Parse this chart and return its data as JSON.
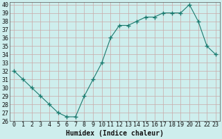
{
  "x": [
    0,
    1,
    2,
    3,
    4,
    5,
    6,
    7,
    8,
    9,
    10,
    11,
    12,
    13,
    14,
    15,
    16,
    17,
    18,
    19,
    20,
    21,
    22,
    23
  ],
  "y": [
    32,
    31,
    30,
    29,
    28,
    27,
    26.5,
    26.5,
    29,
    31,
    33,
    36,
    37.5,
    37.5,
    38,
    38.5,
    38.5,
    39,
    39,
    39,
    40,
    38,
    35,
    34
  ],
  "line_color": "#1a7a6e",
  "marker": "+",
  "marker_size": 4,
  "bg_color": "#ceeeed",
  "grid_color": "#c9a8a8",
  "xlabel": "Humidex (Indice chaleur)",
  "ylim": [
    26,
    40
  ],
  "xlim": [
    -0.5,
    23.5
  ],
  "xticks": [
    0,
    1,
    2,
    3,
    4,
    5,
    6,
    7,
    8,
    9,
    10,
    11,
    12,
    13,
    14,
    15,
    16,
    17,
    18,
    19,
    20,
    21,
    22,
    23
  ],
  "yticks": [
    26,
    27,
    28,
    29,
    30,
    31,
    32,
    33,
    34,
    35,
    36,
    37,
    38,
    39,
    40
  ],
  "font_color": "#111111",
  "label_fontsize": 7,
  "tick_fontsize": 6
}
